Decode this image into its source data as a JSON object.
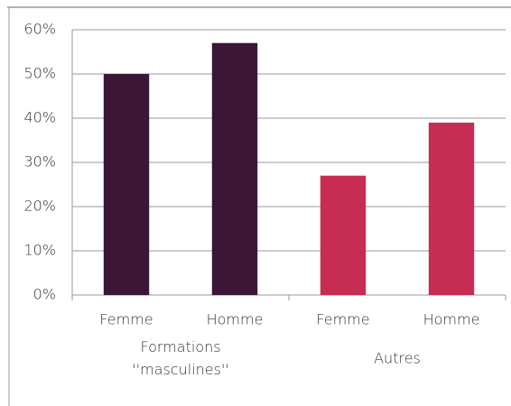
{
  "chart_data": {
    "type": "bar",
    "categories": [
      "Femme",
      "Homme",
      "Femme",
      "Homme"
    ],
    "groups": [
      {
        "label": "Formations ''masculines''",
        "size": 2
      },
      {
        "label": "Autres",
        "size": 2
      }
    ],
    "values": [
      50,
      57,
      27,
      39
    ],
    "colors": [
      "#3b1637",
      "#3b1637",
      "#c72d52",
      "#c72d52"
    ],
    "ylim": [
      0,
      60
    ],
    "yticks": [
      {
        "value": 0,
        "label": "0%"
      },
      {
        "value": 10,
        "label": "10%"
      },
      {
        "value": 20,
        "label": "20%"
      },
      {
        "value": 30,
        "label": "30%"
      },
      {
        "value": 40,
        "label": "40%"
      },
      {
        "value": 50,
        "label": "50%"
      },
      {
        "value": 60,
        "label": "60%"
      }
    ],
    "grid": true
  }
}
